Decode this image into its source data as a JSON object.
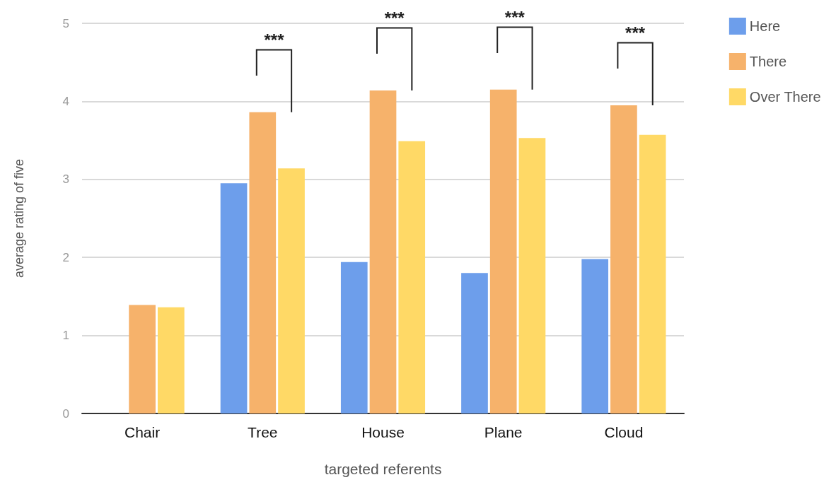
{
  "chart_data": {
    "type": "bar",
    "xlabel": "targeted referents",
    "ylabel": "average rating of five",
    "categories": [
      "Chair",
      "Tree",
      "House",
      "Plane",
      "Cloud"
    ],
    "series": [
      {
        "name": "Here",
        "color": "#6d9eeb",
        "values": [
          null,
          2.95,
          1.94,
          1.8,
          1.98
        ]
      },
      {
        "name": "There",
        "color": "#f6b26b",
        "values": [
          1.39,
          3.86,
          4.14,
          4.15,
          3.95
        ]
      },
      {
        "name": "Over There",
        "color": "#ffd966",
        "values": [
          1.36,
          3.14,
          3.49,
          3.53,
          3.57
        ]
      }
    ],
    "ylim": [
      0,
      5
    ],
    "yticks": [
      0,
      1,
      2,
      3,
      4,
      5
    ],
    "grid": "y",
    "legend": "top right",
    "annotations": [
      "***",
      "***",
      "***",
      "***"
    ]
  }
}
